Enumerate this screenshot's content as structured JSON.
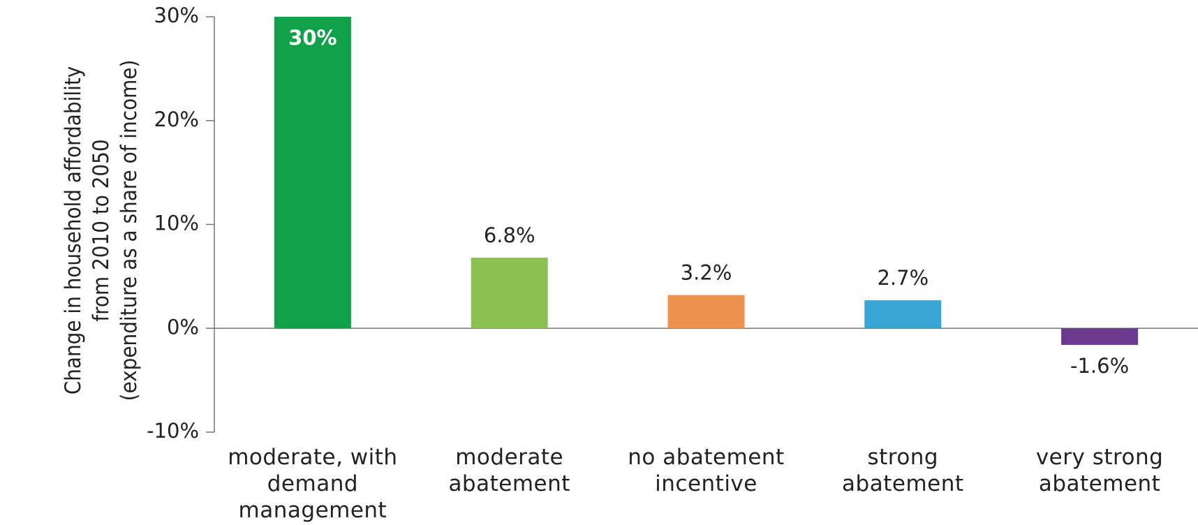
{
  "chart_data": {
    "type": "bar",
    "y_label": [
      "Change in household affordability",
      "from 2010 to 2050",
      "(expenditure as a share of income)"
    ],
    "categories": [
      "moderate, with demand management",
      "moderate abatement",
      "no abatement incentive",
      "strong abatement",
      "very strong abatement"
    ],
    "values": [
      30,
      6.8,
      3.2,
      2.7,
      -1.6
    ],
    "value_labels": [
      "30%",
      "6.8%",
      "3.2%",
      "2.7%",
      "-1.6%"
    ],
    "colors": [
      "#12a14b",
      "#8cc152",
      "#ee924f",
      "#3aa6d6",
      "#6a3a8f"
    ],
    "ylim": [
      -10,
      30
    ],
    "yticks": [
      {
        "value": -10,
        "label": "-10%"
      },
      {
        "value": 0,
        "label": "0%"
      },
      {
        "value": 10,
        "label": "10%"
      },
      {
        "value": 20,
        "label": "20%"
      },
      {
        "value": 30,
        "label": "30%"
      }
    ]
  }
}
